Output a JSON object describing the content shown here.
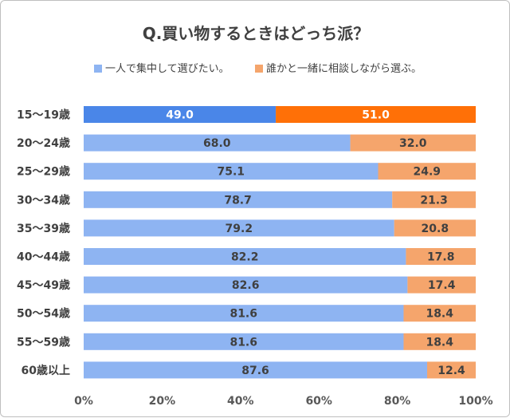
{
  "chart_data": {
    "type": "bar",
    "orientation": "horizontal",
    "stacked": "percent",
    "title": "Q.買い物するときはどっち派？",
    "categories": [
      "15～19歳",
      "20～24歳",
      "25～29歳",
      "30～34歳",
      "35～39歳",
      "40～44歳",
      "45～49歳",
      "50～54歳",
      "55～59歳",
      "60歳以上"
    ],
    "series": [
      {
        "name": "一人で集中して選びたい。",
        "values": [
          49.0,
          68.0,
          75.1,
          78.7,
          79.2,
          82.2,
          82.6,
          81.6,
          81.6,
          87.6
        ]
      },
      {
        "name": "誰かと一緒に相談しながら選ぶ。",
        "values": [
          51.0,
          32.0,
          24.9,
          21.3,
          20.8,
          17.8,
          17.4,
          18.4,
          18.4,
          12.4
        ]
      }
    ],
    "xlim": [
      0,
      100
    ],
    "xticks": [
      "0%",
      "20%",
      "40%",
      "60%",
      "80%",
      "100%"
    ],
    "xlabel": "",
    "ylabel": "",
    "grid": false,
    "legend_position": "top",
    "colors": {
      "series": [
        "#8eb4f2",
        "#f5a56c"
      ],
      "highlight": [
        "#4a86e8",
        "#ff7007"
      ],
      "label_on_highlight": "#ffffff",
      "label_default": "#404040"
    },
    "highlight_row": 0
  }
}
